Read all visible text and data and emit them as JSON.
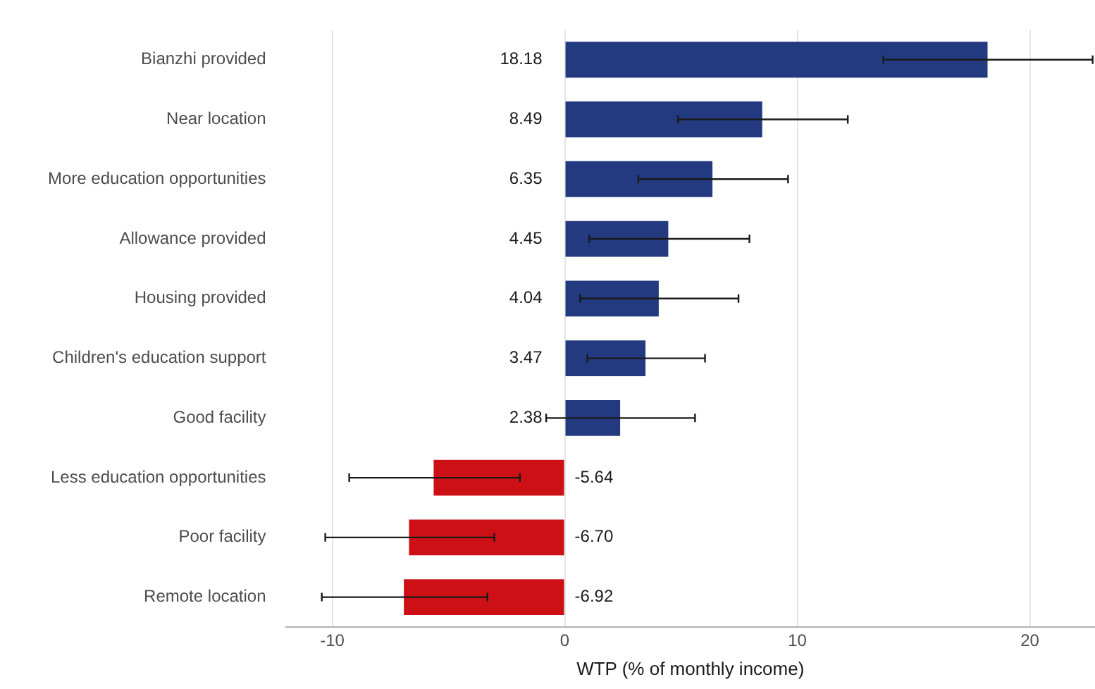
{
  "chart_data": {
    "type": "bar",
    "orientation": "horizontal",
    "xlabel": "WTP (% of monthly income)",
    "categories": [
      "Bianzhi provided",
      "Near location",
      "More education opportunities",
      "Allowance provided",
      "Housing provided",
      "Children's education support",
      "Good facility",
      "Less education opportunities",
      "Poor facility",
      "Remote location"
    ],
    "values": [
      18.18,
      8.49,
      6.35,
      4.45,
      4.04,
      3.47,
      2.38,
      -5.64,
      -6.7,
      -6.92
    ],
    "value_labels": [
      "18.18",
      "8.49",
      "6.35",
      "4.45",
      "4.04",
      "3.47",
      "2.38",
      "-5.64",
      "-6.70",
      "-6.92"
    ],
    "colors": [
      "#233a80",
      "#233a80",
      "#233a80",
      "#233a80",
      "#233a80",
      "#233a80",
      "#233a80",
      "#cc1016",
      "#cc1016",
      "#cc1016"
    ],
    "errors": [
      [
        13.7,
        22.7
      ],
      [
        4.87,
        12.17
      ],
      [
        3.16,
        9.6
      ],
      [
        1.05,
        7.94
      ],
      [
        0.66,
        7.47
      ],
      [
        0.97,
        6.03
      ],
      [
        -0.8,
        5.6
      ],
      [
        -9.27,
        -1.93
      ],
      [
        -10.3,
        -3.03
      ],
      [
        -10.45,
        -3.33
      ]
    ],
    "xlim": [
      -12,
      22.8
    ],
    "xticks": [
      -10,
      0,
      10,
      20
    ],
    "grid": "x"
  }
}
